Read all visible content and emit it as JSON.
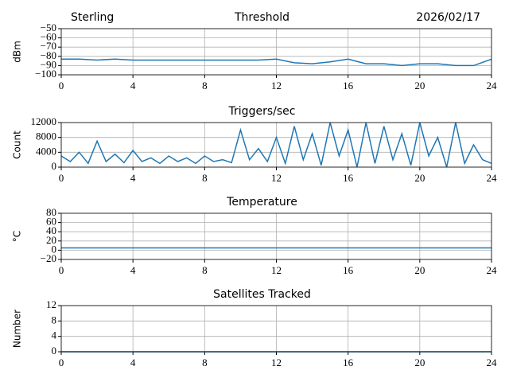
{
  "chart_data": [
    {
      "type": "line",
      "title": "Threshold",
      "title_left": "Sterling",
      "title_right": "2026/02/17",
      "ylabel": "dBm",
      "x": [
        0,
        1,
        2,
        3,
        4,
        5,
        6,
        7,
        8,
        9,
        10,
        11,
        12,
        13,
        14,
        15,
        16,
        17,
        18,
        19,
        20,
        21,
        22,
        23,
        24
      ],
      "values": [
        -83,
        -83,
        -84,
        -83,
        -84,
        -84,
        -84,
        -84,
        -84,
        -84,
        -84,
        -84,
        -83,
        -87,
        -88,
        -86,
        -83,
        -88,
        -88,
        -90,
        -88,
        -88,
        -90,
        -90,
        -83
      ],
      "color": "#1f77b4",
      "xlim": [
        0,
        24
      ],
      "xticks": [
        0,
        4,
        8,
        12,
        16,
        20,
        24
      ],
      "ylim": [
        -100,
        -50
      ],
      "yticks": [
        {
          "value": -100,
          "label": "−100"
        },
        {
          "value": -90,
          "label": "−90"
        },
        {
          "value": -80,
          "label": "−80"
        },
        {
          "value": -70,
          "label": "−70"
        },
        {
          "value": -60,
          "label": "−60"
        },
        {
          "value": -50,
          "label": "−50"
        }
      ],
      "grid": true
    },
    {
      "type": "line",
      "title": "Triggers/sec",
      "ylabel": "Count",
      "x": [
        0,
        0.5,
        1,
        1.5,
        2,
        2.5,
        3,
        3.5,
        4,
        4.5,
        5,
        5.5,
        6,
        6.5,
        7,
        7.5,
        8,
        8.5,
        9,
        9.5,
        10,
        10.5,
        11,
        11.5,
        12,
        12.5,
        13,
        13.5,
        14,
        14.5,
        15,
        15.5,
        16,
        16.5,
        17,
        17.5,
        18,
        18.5,
        19,
        19.5,
        20,
        20.5,
        21,
        21.5,
        22,
        22.5,
        23,
        23.5,
        24
      ],
      "values": [
        3000,
        1500,
        4000,
        1000,
        7000,
        1500,
        3500,
        1200,
        4500,
        1500,
        2500,
        1000,
        3000,
        1500,
        2500,
        1000,
        3000,
        1500,
        2000,
        1200,
        10000,
        2000,
        5000,
        1500,
        8000,
        1000,
        11000,
        2000,
        9000,
        500,
        12000,
        3000,
        10000,
        0,
        12000,
        1000,
        11000,
        2000,
        9000,
        500,
        12000,
        3000,
        8000,
        0,
        12000,
        1000,
        6000,
        2000,
        1000
      ],
      "color": "#1f77b4",
      "xlim": [
        0,
        24
      ],
      "xticks": [
        0,
        4,
        8,
        12,
        16,
        20,
        24
      ],
      "ylim": [
        0,
        12000
      ],
      "yticks": [
        0,
        4000,
        8000,
        12000
      ],
      "grid": true
    },
    {
      "type": "line",
      "title": "Temperature",
      "ylabel": "°C",
      "x": [
        0,
        24
      ],
      "values": [
        5,
        5
      ],
      "color": "#1f77b4",
      "xlim": [
        0,
        24
      ],
      "xticks": [
        0,
        4,
        8,
        12,
        16,
        20,
        24
      ],
      "ylim": [
        -20,
        80
      ],
      "yticks": [
        {
          "value": -20,
          "label": "−20"
        },
        0,
        20,
        40,
        60,
        80
      ],
      "grid": true
    },
    {
      "type": "line",
      "title": "Satellites Tracked",
      "ylabel": "Number",
      "x": [
        0,
        24
      ],
      "values": [
        0,
        0
      ],
      "color": "#1f77b4",
      "xlim": [
        0,
        24
      ],
      "xticks": [
        0,
        4,
        8,
        12,
        16,
        20,
        24
      ],
      "ylim": [
        0,
        12
      ],
      "yticks": [
        0,
        4,
        8,
        12
      ],
      "grid": true
    }
  ]
}
